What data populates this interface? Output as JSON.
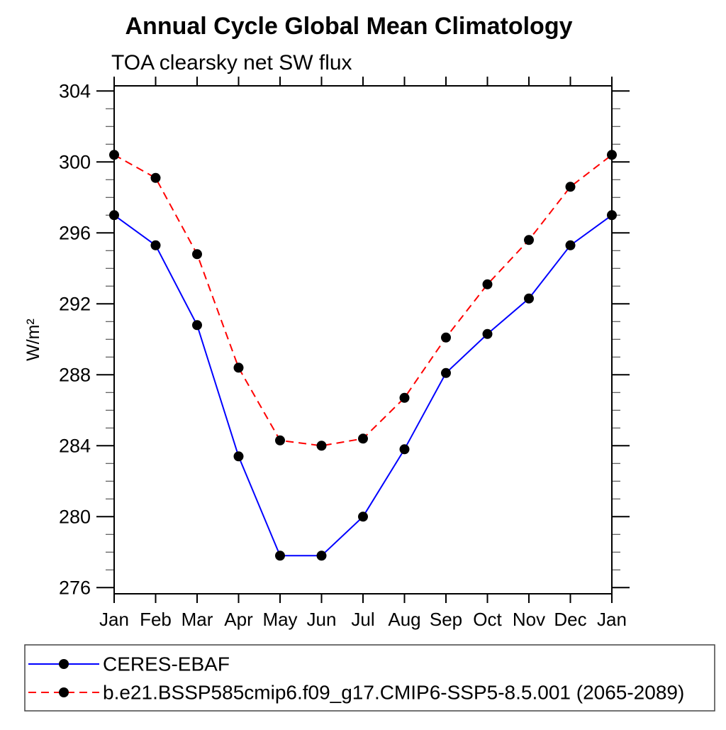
{
  "title": "Annual Cycle Global Mean Climatology",
  "subtitle": "TOA clearsky net SW flux",
  "chart_data": {
    "type": "line",
    "x_categories": [
      "Jan",
      "Feb",
      "Mar",
      "Apr",
      "May",
      "Jun",
      "Jul",
      "Aug",
      "Sep",
      "Oct",
      "Nov",
      "Dec",
      "Jan"
    ],
    "ylabel": "W/m²",
    "ylim": [
      276,
      304
    ],
    "ytick_major_step": 4,
    "ytick_minor_step": 1,
    "grid": false,
    "legend_position": "bottom",
    "marker_color": "#000000",
    "series": [
      {
        "name": "CERES-EBAF",
        "color": "#0000ff",
        "style": "solid",
        "marker": "filled-circle",
        "values": [
          297.0,
          295.3,
          290.8,
          283.4,
          277.8,
          277.8,
          280.0,
          283.8,
          288.1,
          290.3,
          292.3,
          295.3,
          297.0
        ]
      },
      {
        "name": "b.e21.BSSP585cmip6.f09_g17.CMIP6-SSP5-8.5.001 (2065-2089)",
        "color": "#ff0000",
        "style": "dashed",
        "marker": "filled-circle",
        "values": [
          300.4,
          299.1,
          294.8,
          288.4,
          284.3,
          284.0,
          284.4,
          286.7,
          290.1,
          293.1,
          295.6,
          298.6,
          300.4
        ]
      }
    ]
  }
}
